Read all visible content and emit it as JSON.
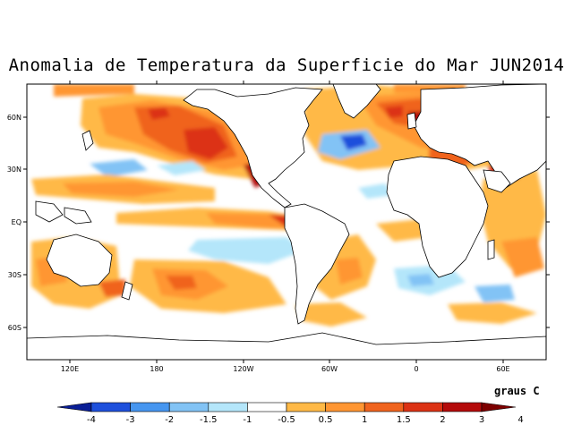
{
  "title": "Anomalia de Temperatura da Superficie do Mar JUN2014",
  "units": "graus C",
  "lat_labels": [
    "60N",
    "30N",
    "EQ",
    "30S",
    "60S"
  ],
  "lon_labels": [
    "120E",
    "180",
    "120W",
    "60W",
    "0",
    "60E"
  ],
  "colorbar": {
    "labels": [
      "-4",
      "-3",
      "-2",
      "-1.5",
      "-1",
      "-0.5",
      "0.5",
      "1",
      "1.5",
      "2",
      "3",
      "4"
    ],
    "colors": [
      "#0a1e96",
      "#1e50dc",
      "#4696f0",
      "#82c3f5",
      "#b4e6fa",
      "#ffffff",
      "#ffb946",
      "#ff9632",
      "#f0641e",
      "#dc3214",
      "#b40a0a",
      "#7d0000"
    ]
  },
  "colors": {
    "land": "#ffffff",
    "coast": "#000000"
  }
}
